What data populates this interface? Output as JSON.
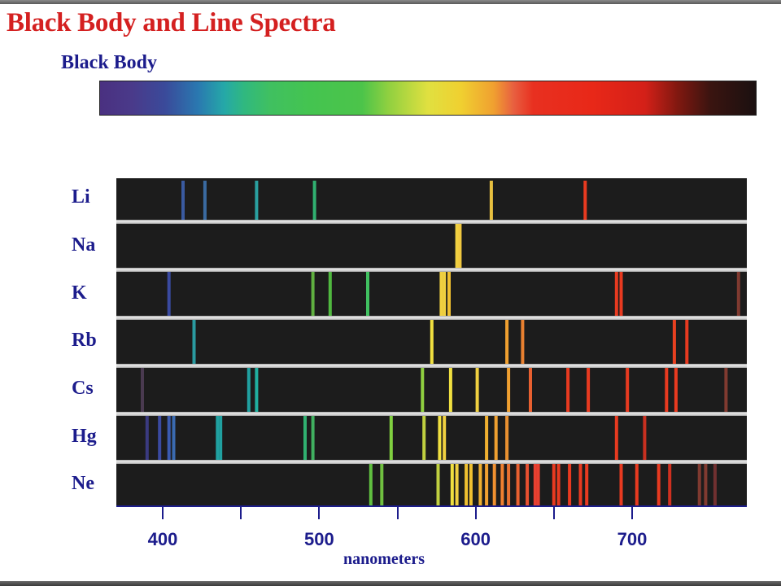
{
  "title": "Black Body and Line Spectra",
  "blackbody_label": "Black Body",
  "axis": {
    "title": "nanometers",
    "range_nm": [
      371,
      771
    ],
    "tick_labels": [
      "400",
      "500",
      "600",
      "700"
    ],
    "major_ticks_nm": [
      400,
      500,
      600,
      700
    ],
    "minor_ticks_nm": [
      450,
      550,
      650
    ]
  },
  "colors": {
    "title": "#d42020",
    "labels": "#1c1c8c",
    "panel_background": "#1c1c1c"
  },
  "elements": [
    {
      "symbol": "Li",
      "lines": [
        {
          "nm": 413,
          "color": "#3a5aa0"
        },
        {
          "nm": 427,
          "color": "#3a6aa0"
        },
        {
          "nm": 460,
          "color": "#2aa0a0"
        },
        {
          "nm": 497,
          "color": "#30b070"
        },
        {
          "nm": 610,
          "color": "#e8c040"
        },
        {
          "nm": 670,
          "color": "#e83a20"
        }
      ]
    },
    {
      "symbol": "Na",
      "lines": [
        {
          "nm": 588,
          "color": "#f0d040"
        },
        {
          "nm": 590,
          "color": "#f0c840"
        }
      ]
    },
    {
      "symbol": "K",
      "lines": [
        {
          "nm": 404,
          "color": "#3a4aa0"
        },
        {
          "nm": 496,
          "color": "#60b040"
        },
        {
          "nm": 507,
          "color": "#50b840"
        },
        {
          "nm": 531,
          "color": "#40c060"
        },
        {
          "nm": 578,
          "color": "#f0d040"
        },
        {
          "nm": 580,
          "color": "#f0d040"
        },
        {
          "nm": 583,
          "color": "#f0c030"
        },
        {
          "nm": 690,
          "color": "#e83a20"
        },
        {
          "nm": 693,
          "color": "#e83a20"
        },
        {
          "nm": 768,
          "color": "#803a30"
        }
      ]
    },
    {
      "symbol": "Rb",
      "lines": [
        {
          "nm": 420,
          "color": "#2a9aa0"
        },
        {
          "nm": 572,
          "color": "#f0e040"
        },
        {
          "nm": 620,
          "color": "#f0a030"
        },
        {
          "nm": 630,
          "color": "#e88030"
        },
        {
          "nm": 727,
          "color": "#e84020"
        },
        {
          "nm": 735,
          "color": "#e83a20"
        }
      ]
    },
    {
      "symbol": "Cs",
      "lines": [
        {
          "nm": 387,
          "color": "#4a3a50"
        },
        {
          "nm": 455,
          "color": "#20a0a0"
        },
        {
          "nm": 460,
          "color": "#20b0a0"
        },
        {
          "nm": 566,
          "color": "#90d040"
        },
        {
          "nm": 584,
          "color": "#f0e040"
        },
        {
          "nm": 601,
          "color": "#f0d040"
        },
        {
          "nm": 621,
          "color": "#f0a030"
        },
        {
          "nm": 635,
          "color": "#e86030"
        },
        {
          "nm": 659,
          "color": "#e83a20"
        },
        {
          "nm": 672,
          "color": "#e83a20"
        },
        {
          "nm": 697,
          "color": "#e83a20"
        },
        {
          "nm": 722,
          "color": "#e83a20"
        },
        {
          "nm": 728,
          "color": "#e83a20"
        },
        {
          "nm": 760,
          "color": "#803a30"
        }
      ]
    },
    {
      "symbol": "Hg",
      "lines": [
        {
          "nm": 390,
          "color": "#3a3a80"
        },
        {
          "nm": 398,
          "color": "#3a4aa0"
        },
        {
          "nm": 404,
          "color": "#3a5ab0"
        },
        {
          "nm": 407,
          "color": "#3a6ab0"
        },
        {
          "nm": 435,
          "color": "#20a0a0"
        },
        {
          "nm": 437,
          "color": "#20a0a0"
        },
        {
          "nm": 491,
          "color": "#30b070"
        },
        {
          "nm": 496,
          "color": "#40b060"
        },
        {
          "nm": 546,
          "color": "#80d040"
        },
        {
          "nm": 567,
          "color": "#c0d040"
        },
        {
          "nm": 577,
          "color": "#f0e040"
        },
        {
          "nm": 580,
          "color": "#f0d040"
        },
        {
          "nm": 607,
          "color": "#f0b030"
        },
        {
          "nm": 613,
          "color": "#f0a030"
        },
        {
          "nm": 620,
          "color": "#e89030"
        },
        {
          "nm": 690,
          "color": "#e83a20"
        },
        {
          "nm": 708,
          "color": "#c83020"
        }
      ]
    },
    {
      "symbol": "Ne",
      "lines": [
        {
          "nm": 533,
          "color": "#60c040"
        },
        {
          "nm": 540,
          "color": "#70c040"
        },
        {
          "nm": 576,
          "color": "#c0d040"
        },
        {
          "nm": 585,
          "color": "#f0e040"
        },
        {
          "nm": 588,
          "color": "#f0d040"
        },
        {
          "nm": 594,
          "color": "#f0c030"
        },
        {
          "nm": 597,
          "color": "#f0c030"
        },
        {
          "nm": 603,
          "color": "#f0b030"
        },
        {
          "nm": 607,
          "color": "#f0a030"
        },
        {
          "nm": 612,
          "color": "#f09030"
        },
        {
          "nm": 617,
          "color": "#f08030"
        },
        {
          "nm": 621,
          "color": "#e87030"
        },
        {
          "nm": 627,
          "color": "#e86030"
        },
        {
          "nm": 633,
          "color": "#e85030"
        },
        {
          "nm": 638,
          "color": "#e84030"
        },
        {
          "nm": 640,
          "color": "#e84030"
        },
        {
          "nm": 650,
          "color": "#e83a20"
        },
        {
          "nm": 653,
          "color": "#e83a20"
        },
        {
          "nm": 660,
          "color": "#e83a20"
        },
        {
          "nm": 667,
          "color": "#e83a20"
        },
        {
          "nm": 671,
          "color": "#e83a20"
        },
        {
          "nm": 693,
          "color": "#e83a20"
        },
        {
          "nm": 703,
          "color": "#e83a20"
        },
        {
          "nm": 717,
          "color": "#e83a20"
        },
        {
          "nm": 724,
          "color": "#d03020"
        },
        {
          "nm": 743,
          "color": "#803a30"
        },
        {
          "nm": 747,
          "color": "#803a30"
        },
        {
          "nm": 753,
          "color": "#703030"
        }
      ]
    }
  ]
}
